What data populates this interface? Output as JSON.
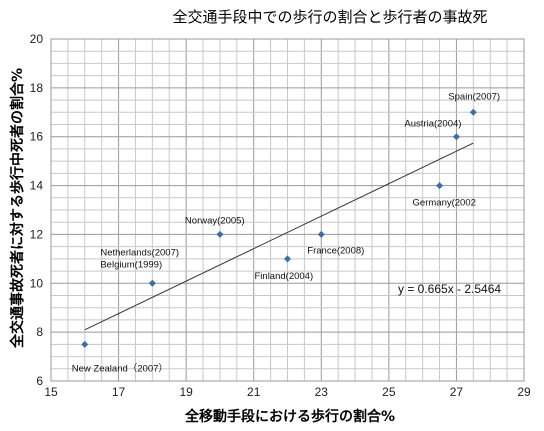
{
  "chart_data": {
    "type": "scatter",
    "title": "全交通手段中での歩行の割合と歩行者の事故死",
    "xlabel": "全移動手段における歩行の割合%",
    "ylabel": "全交通事故死者に対する歩行中死者の割合%",
    "xlim": [
      15,
      29
    ],
    "ylim": [
      6,
      20
    ],
    "x_ticks": [
      15,
      17,
      19,
      21,
      23,
      25,
      27,
      29
    ],
    "y_ticks": [
      6,
      8,
      10,
      12,
      14,
      16,
      18,
      20
    ],
    "grid": true,
    "marker_color": "#3A6EA5",
    "points": [
      {
        "x": 16.0,
        "y": 7.5,
        "label": "New Zealand（2007）"
      },
      {
        "x": 18.0,
        "y": 10.0,
        "label": "Netherlands(2007)\nBelgium(1999)"
      },
      {
        "x": 20.0,
        "y": 12.0,
        "label": "Norway(2005)"
      },
      {
        "x": 22.0,
        "y": 11.0,
        "label": "Finland(2004)"
      },
      {
        "x": 23.0,
        "y": 12.0,
        "label": "France(2008)"
      },
      {
        "x": 26.5,
        "y": 14.0,
        "label": "Germany(2002"
      },
      {
        "x": 27.0,
        "y": 16.0,
        "label": "Austria(2004)"
      },
      {
        "x": 27.5,
        "y": 17.0,
        "label": "Spain(2007)"
      }
    ],
    "trendline": {
      "equation": "y = 0.665x - 2.5464",
      "slope": 0.665,
      "intercept": -2.5464,
      "x_range": [
        16.0,
        27.5
      ]
    }
  }
}
